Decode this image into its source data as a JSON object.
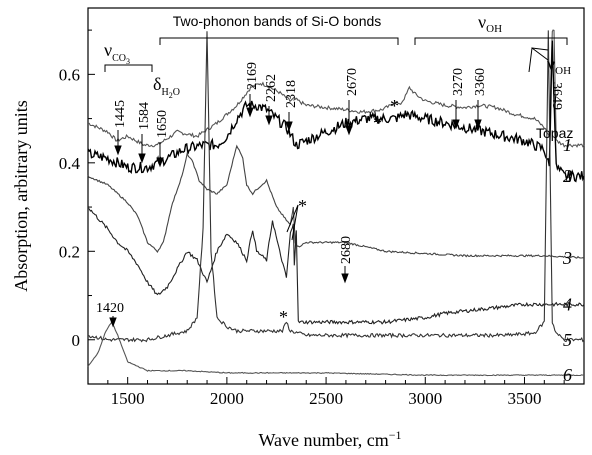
{
  "chart_data": {
    "type": "line",
    "xlabel": "Wave number, cm",
    "xlabel_sup": "−1",
    "ylabel": "Absorption, arbitrary units",
    "xlim": [
      1300,
      3800
    ],
    "ylim": [
      -0.1,
      0.75
    ],
    "x_ticks": [
      1500,
      2000,
      2500,
      3000,
      3500
    ],
    "x_tick_labels": [
      "1500",
      "2000",
      "2500",
      "3000",
      "3500"
    ],
    "y_ticks": [
      0,
      0.2,
      0.4,
      0.6
    ],
    "y_tick_labels": [
      "0",
      "0.2",
      "0.4",
      "0.6"
    ],
    "grid": false,
    "sample_label": "Topaz",
    "series": [
      {
        "name": "1",
        "color": "#555555",
        "points": [
          [
            1300,
            0.49
          ],
          [
            1400,
            0.47
          ],
          [
            1445,
            0.45
          ],
          [
            1500,
            0.46
          ],
          [
            1584,
            0.44
          ],
          [
            1650,
            0.44
          ],
          [
            1750,
            0.47
          ],
          [
            1850,
            0.46
          ],
          [
            1950,
            0.49
          ],
          [
            2050,
            0.53
          ],
          [
            2120,
            0.57
          ],
          [
            2169,
            0.58
          ],
          [
            2200,
            0.575
          ],
          [
            2262,
            0.56
          ],
          [
            2318,
            0.54
          ],
          [
            2340,
            0.545
          ],
          [
            2400,
            0.53
          ],
          [
            2500,
            0.525
          ],
          [
            2600,
            0.52
          ],
          [
            2680,
            0.515
          ],
          [
            2780,
            0.52
          ],
          [
            2830,
            0.53
          ],
          [
            2850,
            0.54
          ],
          [
            2870,
            0.53
          ],
          [
            2900,
            0.55
          ],
          [
            2920,
            0.57
          ],
          [
            2950,
            0.555
          ],
          [
            3000,
            0.54
          ],
          [
            3100,
            0.53
          ],
          [
            3200,
            0.525
          ],
          [
            3270,
            0.53
          ],
          [
            3360,
            0.525
          ],
          [
            3450,
            0.51
          ],
          [
            3550,
            0.5
          ],
          [
            3600,
            0.48
          ],
          [
            3625,
            0.46
          ],
          [
            3640,
            0.7
          ],
          [
            3649,
            0.7
          ],
          [
            3660,
            0.45
          ],
          [
            3700,
            0.44
          ],
          [
            3800,
            0.44
          ]
        ]
      },
      {
        "name": "2",
        "color": "#000000",
        "points": [
          [
            1300,
            0.42
          ],
          [
            1400,
            0.41
          ],
          [
            1500,
            0.39
          ],
          [
            1600,
            0.39
          ],
          [
            1700,
            0.41
          ],
          [
            1780,
            0.43
          ],
          [
            1880,
            0.44
          ],
          [
            1950,
            0.44
          ],
          [
            2000,
            0.46
          ],
          [
            2050,
            0.5
          ],
          [
            2100,
            0.53
          ],
          [
            2150,
            0.53
          ],
          [
            2200,
            0.52
          ],
          [
            2250,
            0.5
          ],
          [
            2300,
            0.48
          ],
          [
            2350,
            0.44
          ],
          [
            2400,
            0.45
          ],
          [
            2500,
            0.47
          ],
          [
            2600,
            0.49
          ],
          [
            2700,
            0.5
          ],
          [
            2800,
            0.5
          ],
          [
            2850,
            0.5
          ],
          [
            2900,
            0.51
          ],
          [
            3000,
            0.5
          ],
          [
            3100,
            0.49
          ],
          [
            3200,
            0.48
          ],
          [
            3300,
            0.47
          ],
          [
            3400,
            0.46
          ],
          [
            3500,
            0.45
          ],
          [
            3600,
            0.43
          ],
          [
            3625,
            0.39
          ],
          [
            3640,
            0.68
          ],
          [
            3660,
            0.39
          ],
          [
            3700,
            0.37
          ],
          [
            3800,
            0.37
          ]
        ]
      },
      {
        "name": "3",
        "color": "#444444",
        "points": [
          [
            1300,
            0.37
          ],
          [
            1350,
            0.36
          ],
          [
            1400,
            0.35
          ],
          [
            1450,
            0.33
          ],
          [
            1500,
            0.31
          ],
          [
            1550,
            0.28
          ],
          [
            1600,
            0.22
          ],
          [
            1650,
            0.2
          ],
          [
            1680,
            0.22
          ],
          [
            1720,
            0.3
          ],
          [
            1780,
            0.38
          ],
          [
            1800,
            0.42
          ],
          [
            1830,
            0.4
          ],
          [
            1860,
            0.36
          ],
          [
            1900,
            0.34
          ],
          [
            1950,
            0.33
          ],
          [
            2000,
            0.35
          ],
          [
            2050,
            0.44
          ],
          [
            2080,
            0.41
          ],
          [
            2100,
            0.35
          ],
          [
            2130,
            0.33
          ],
          [
            2150,
            0.34
          ],
          [
            2200,
            0.36
          ],
          [
            2250,
            0.3
          ],
          [
            2300,
            0.27
          ],
          [
            2320,
            0.26
          ],
          [
            2335,
            0.3
          ],
          [
            2345,
            0.22
          ],
          [
            2360,
            0.21
          ],
          [
            2400,
            0.22
          ],
          [
            2500,
            0.22
          ],
          [
            2600,
            0.22
          ],
          [
            2700,
            0.21
          ],
          [
            2800,
            0.2
          ],
          [
            3000,
            0.195
          ],
          [
            3200,
            0.19
          ],
          [
            3400,
            0.19
          ],
          [
            3600,
            0.19
          ],
          [
            3800,
            0.185
          ]
        ]
      },
      {
        "name": "4",
        "color": "#222222",
        "points": [
          [
            1300,
            0.3
          ],
          [
            1400,
            0.25
          ],
          [
            1450,
            0.22
          ],
          [
            1500,
            0.2
          ],
          [
            1550,
            0.17
          ],
          [
            1600,
            0.13
          ],
          [
            1650,
            0.1
          ],
          [
            1700,
            0.12
          ],
          [
            1750,
            0.16
          ],
          [
            1800,
            0.2
          ],
          [
            1850,
            0.18
          ],
          [
            1900,
            0.13
          ],
          [
            1950,
            0.2
          ],
          [
            2000,
            0.24
          ],
          [
            2050,
            0.22
          ],
          [
            2100,
            0.18
          ],
          [
            2130,
            0.25
          ],
          [
            2150,
            0.2
          ],
          [
            2200,
            0.18
          ],
          [
            2230,
            0.27
          ],
          [
            2260,
            0.21
          ],
          [
            2300,
            0.14
          ],
          [
            2320,
            0.24
          ],
          [
            2335,
            0.26
          ],
          [
            2340,
            0.17
          ],
          [
            2350,
            0.25
          ],
          [
            2360,
            0.04
          ],
          [
            2400,
            0.04
          ],
          [
            2500,
            0.04
          ],
          [
            2600,
            0.04
          ],
          [
            2700,
            0.04
          ],
          [
            2800,
            0.04
          ],
          [
            2900,
            0.045
          ],
          [
            3000,
            0.05
          ],
          [
            3100,
            0.06
          ],
          [
            3200,
            0.065
          ],
          [
            3300,
            0.07
          ],
          [
            3400,
            0.075
          ],
          [
            3500,
            0.08
          ],
          [
            3600,
            0.08
          ],
          [
            3800,
            0.08
          ]
        ]
      },
      {
        "name": "5",
        "color": "#333333",
        "points": [
          [
            1300,
            0.01
          ],
          [
            1400,
            0.0
          ],
          [
            1500,
            0.0
          ],
          [
            1600,
            0.0
          ],
          [
            1700,
            0.01
          ],
          [
            1800,
            0.02
          ],
          [
            1850,
            0.05
          ],
          [
            1880,
            0.25
          ],
          [
            1900,
            0.7
          ],
          [
            1920,
            0.2
          ],
          [
            1950,
            0.05
          ],
          [
            2000,
            0.03
          ],
          [
            2050,
            0.02
          ],
          [
            2100,
            0.02
          ],
          [
            2200,
            0.02
          ],
          [
            2280,
            0.02
          ],
          [
            2300,
            0.04
          ],
          [
            2320,
            0.02
          ],
          [
            2400,
            0.01
          ],
          [
            2600,
            0.01
          ],
          [
            2800,
            0.01
          ],
          [
            3000,
            0.01
          ],
          [
            3200,
            0.01
          ],
          [
            3400,
            0.01
          ],
          [
            3550,
            0.015
          ],
          [
            3600,
            0.04
          ],
          [
            3620,
            0.7
          ],
          [
            3640,
            0.04
          ],
          [
            3660,
            0.015
          ],
          [
            3700,
            0.0
          ],
          [
            3800,
            0.0
          ]
        ]
      },
      {
        "name": "6",
        "color": "#555555",
        "points": [
          [
            1300,
            -0.06
          ],
          [
            1350,
            -0.03
          ],
          [
            1390,
            0.02
          ],
          [
            1420,
            0.04
          ],
          [
            1450,
            0.01
          ],
          [
            1500,
            -0.05
          ],
          [
            1600,
            -0.07
          ],
          [
            1800,
            -0.07
          ],
          [
            2000,
            -0.075
          ],
          [
            2500,
            -0.075
          ],
          [
            3000,
            -0.08
          ],
          [
            3500,
            -0.08
          ],
          [
            3800,
            -0.08
          ]
        ]
      }
    ],
    "annotations": [
      {
        "text": "Two-phonon bands of Si-O bonds"
      },
      {
        "text": "ν",
        "sub": "OH"
      },
      {
        "text": "ν",
        "sub": "CO",
        "subsub": "3"
      },
      {
        "text": "δ",
        "sub": "H",
        "subsub": "2",
        "subtail": "O"
      },
      {
        "text": "ν",
        "sub": "OH"
      },
      {
        "text": "1445",
        "x": 1445
      },
      {
        "text": "1584",
        "x": 1584
      },
      {
        "text": "1650",
        "x": 1650
      },
      {
        "text": "2169",
        "x": 2169
      },
      {
        "text": "2262",
        "x": 2262
      },
      {
        "text": "2318",
        "x": 2318
      },
      {
        "text": "2670",
        "x": 2670
      },
      {
        "text": "3270",
        "x": 3270
      },
      {
        "text": "3360",
        "x": 3360
      },
      {
        "text": "3649",
        "x": 3649
      },
      {
        "text": "2680",
        "x": 2680
      },
      {
        "text": "1420",
        "x": 1420
      },
      {
        "text": "*"
      },
      {
        "text": "*"
      },
      {
        "text": "*"
      },
      {
        "text": "*"
      }
    ]
  }
}
